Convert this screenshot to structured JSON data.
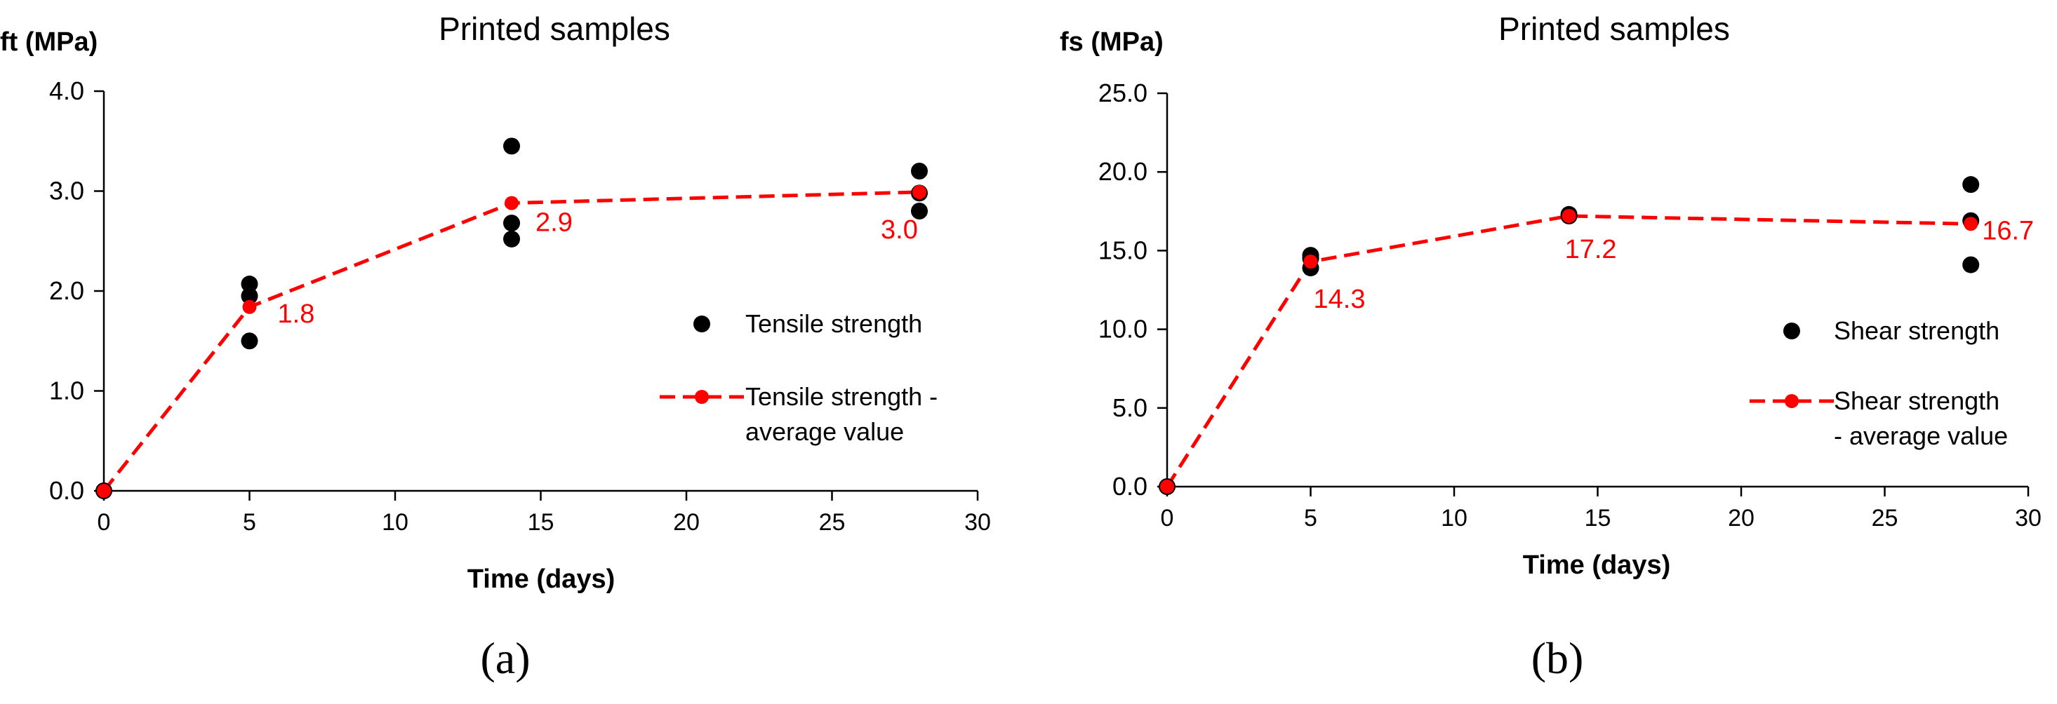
{
  "chart_data": [
    {
      "type": "scatter",
      "panel_label": "(a)",
      "title": "Printed samples",
      "ylabel": "ft (MPa)",
      "xlabel": "Time (days)",
      "xlim": [
        0,
        30
      ],
      "ylim": [
        0,
        4
      ],
      "xticks": [
        "0",
        "5",
        "10",
        "15",
        "20",
        "25",
        "30"
      ],
      "yticks": [
        "0.0",
        "1.0",
        "2.0",
        "3.0",
        "4.0"
      ],
      "series": [
        {
          "name": "Tensile strength",
          "color": "#000000",
          "style": "markers",
          "points": [
            [
              0,
              0
            ],
            [
              5,
              2.07
            ],
            [
              5,
              1.95
            ],
            [
              5,
              1.5
            ],
            [
              14,
              3.45
            ],
            [
              14,
              2.68
            ],
            [
              14,
              2.52
            ],
            [
              28,
              3.2
            ],
            [
              28,
              2.98
            ],
            [
              28,
              2.8
            ]
          ]
        },
        {
          "name": "Tensile strength - average value",
          "legend_lines": [
            "Tensile strength -",
            "average value"
          ],
          "color": "#ff0000",
          "style": "dashed-line-markers",
          "points": [
            [
              0,
              0
            ],
            [
              5,
              1.84
            ],
            [
              14,
              2.88
            ],
            [
              28,
              2.99
            ]
          ],
          "labels": [
            "",
            "1.8",
            "2.9",
            "3.0"
          ]
        }
      ]
    },
    {
      "type": "scatter",
      "panel_label": "(b)",
      "title": "Printed samples",
      "ylabel": "fs (MPa)",
      "xlabel": "Time (days)",
      "xlim": [
        0,
        30
      ],
      "ylim": [
        0,
        25
      ],
      "xticks": [
        "0",
        "5",
        "10",
        "15",
        "20",
        "25",
        "30"
      ],
      "yticks": [
        "0.0",
        "5.0",
        "10.0",
        "15.0",
        "20.0",
        "25.0"
      ],
      "series": [
        {
          "name": "Shear strength",
          "color": "#000000",
          "style": "markers",
          "points": [
            [
              0,
              0
            ],
            [
              5,
              14.7
            ],
            [
              5,
              14.5
            ],
            [
              5,
              13.9
            ],
            [
              14,
              17.3
            ],
            [
              14,
              17.2
            ],
            [
              28,
              19.2
            ],
            [
              28,
              16.9
            ],
            [
              28,
              14.1
            ]
          ]
        },
        {
          "name": "Shear strength - average value",
          "legend_lines": [
            "Shear strength",
            "- average value"
          ],
          "color": "#ff0000",
          "style": "dashed-line-markers",
          "points": [
            [
              0,
              0
            ],
            [
              5,
              14.3
            ],
            [
              14,
              17.2
            ],
            [
              28,
              16.7
            ]
          ],
          "labels": [
            "",
            "14.3",
            "17.2",
            "16.7"
          ]
        }
      ]
    }
  ]
}
